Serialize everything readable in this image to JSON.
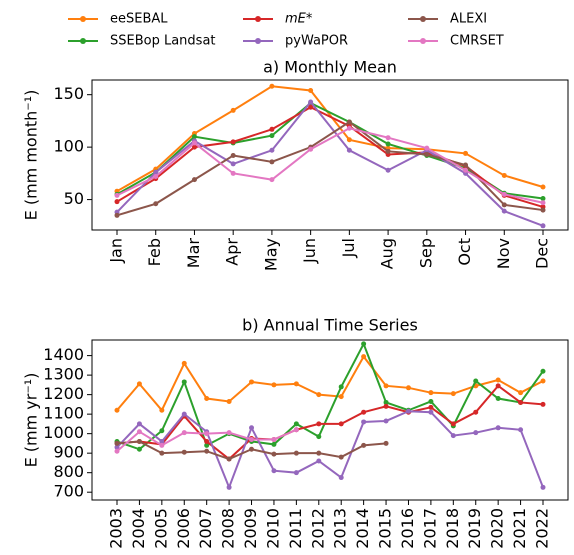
{
  "chart_data": [
    {
      "type": "line",
      "title": "a) Monthly Mean",
      "ylabel": "E (mm month⁻¹)",
      "categories": [
        "Jan",
        "Feb",
        "Mar",
        "Apr",
        "May",
        "Jun",
        "Jul",
        "Aug",
        "Sep",
        "Oct",
        "Nov",
        "Dec"
      ],
      "ylim": [
        21,
        164
      ],
      "yticks": [
        50,
        100,
        150
      ],
      "series": [
        {
          "name": "eeSEBAL",
          "color": "#ff7f0e",
          "values": [
            58,
            79,
            113,
            135,
            158,
            154,
            107,
            99,
            98,
            94,
            73,
            62
          ]
        },
        {
          "name": "SSEBop Landsat",
          "color": "#2ca02c",
          "values": [
            55,
            76,
            110,
            104,
            111,
            142,
            124,
            103,
            92,
            80,
            56,
            51
          ]
        },
        {
          "name": "mE*",
          "color": "#d62728",
          "values": [
            48,
            70,
            100,
            105,
            117,
            138,
            120,
            93,
            95,
            82,
            54,
            43
          ]
        },
        {
          "name": "pyWaPOR",
          "color": "#9467bd",
          "values": [
            38,
            76,
            106,
            84,
            97,
            143,
            97,
            78,
            97,
            75,
            39,
            25
          ]
        },
        {
          "name": "ALEXI",
          "color": "#8c564b",
          "values": [
            35,
            46,
            69,
            92,
            86,
            100,
            124,
            96,
            93,
            83,
            45,
            40
          ]
        },
        {
          "name": "CMRSET",
          "color": "#e377c2",
          "values": [
            54,
            72,
            104,
            75,
            69,
            98,
            118,
            109,
            99,
            78,
            55,
            47
          ]
        }
      ]
    },
    {
      "type": "line",
      "title": "b) Annual Time Series",
      "ylabel": "E (mm yr⁻¹)",
      "categories": [
        "2003",
        "2004",
        "2005",
        "2006",
        "2007",
        "2008",
        "2009",
        "2010",
        "2011",
        "2012",
        "2013",
        "2014",
        "2015",
        "2016",
        "2017",
        "2018",
        "2019",
        "2020",
        "2021",
        "2022"
      ],
      "ylim": [
        660,
        1480
      ],
      "yticks": [
        700,
        800,
        900,
        1000,
        1100,
        1200,
        1300,
        1400
      ],
      "series": [
        {
          "color": "#ff7f0e",
          "values": [
            1120,
            1255,
            1120,
            1360,
            1180,
            1165,
            1265,
            1250,
            1255,
            1200,
            1190,
            1395,
            1245,
            1235,
            1210,
            1205,
            1245,
            1275,
            1210,
            1270
          ]
        },
        {
          "color": "#2ca02c",
          "values": [
            960,
            920,
            1015,
            1265,
            940,
            1000,
            960,
            945,
            1050,
            985,
            1240,
            1460,
            1160,
            1120,
            1165,
            1040,
            1270,
            1180,
            1160,
            1320
          ]
        },
        {
          "color": "#d62728",
          "values": [
            950,
            960,
            945,
            1090,
            960,
            870,
            975,
            970,
            1020,
            1050,
            1050,
            1110,
            1140,
            1110,
            1135,
            1050,
            1110,
            1245,
            1160,
            1150
          ]
        },
        {
          "color": "#9467bd",
          "values": [
            930,
            1050,
            960,
            1100,
            1010,
            725,
            1030,
            810,
            800,
            860,
            775,
            1060,
            1065,
            1115,
            1110,
            990,
            1005,
            1030,
            1020,
            725
          ]
        },
        {
          "color": "#8c564b",
          "values": [
            950,
            960,
            900,
            905,
            910,
            870,
            920,
            895,
            900,
            900,
            880,
            940,
            950,
            null,
            null,
            null,
            null,
            null,
            null,
            null
          ]
        },
        {
          "color": "#e377c2",
          "values": [
            910,
            1010,
            940,
            1005,
            1000,
            1005,
            970,
            970,
            1020,
            null,
            null,
            null,
            null,
            null,
            null,
            null,
            null,
            null,
            null,
            null
          ]
        }
      ]
    }
  ]
}
